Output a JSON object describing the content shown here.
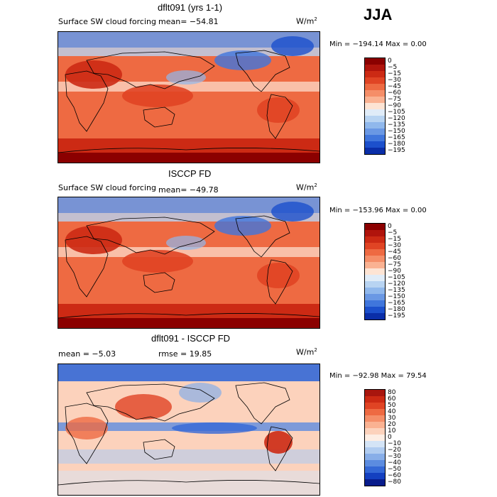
{
  "season": "JJA",
  "panels": [
    {
      "title": "dflt091 (yrs 1-1)",
      "subtitle": "Surface SW cloud forcing",
      "mean": "mean= −54.81",
      "units": "W/m",
      "units_sup": "2",
      "minmax": "Min = −194.14 Max =    0.00",
      "legend_levels": [
        "0",
        "−5",
        "−15",
        "−30",
        "−45",
        "−60",
        "−75",
        "−90",
        "−105",
        "−120",
        "−135",
        "−150",
        "−165",
        "−180",
        "−195"
      ],
      "legend_colors": [
        "#8b0000",
        "#b0140c",
        "#cc2a14",
        "#e04424",
        "#ee6a42",
        "#f58e68",
        "#fab292",
        "#fde4d4",
        "#e0ecf8",
        "#b8d4f2",
        "#90b8ec",
        "#6a98e4",
        "#4076dc",
        "#1c50cc",
        "#0a2ea8"
      ]
    },
    {
      "title": "ISCCP FD",
      "subtitle": "Surface SW cloud forcing",
      "mean": "mean= −49.78",
      "units": "W/m",
      "units_sup": "2",
      "minmax": "Min = −153.96 Max =    0.00",
      "legend_levels": [
        "0",
        "−5",
        "−15",
        "−30",
        "−45",
        "−60",
        "−75",
        "−90",
        "−105",
        "−120",
        "−135",
        "−150",
        "−165",
        "−180",
        "−195"
      ],
      "legend_colors": [
        "#8b0000",
        "#b0140c",
        "#cc2a14",
        "#e04424",
        "#ee6a42",
        "#f58e68",
        "#fab292",
        "#fde4d4",
        "#e0ecf8",
        "#b8d4f2",
        "#90b8ec",
        "#6a98e4",
        "#4076dc",
        "#1c50cc",
        "#0a2ea8"
      ]
    },
    {
      "title": "dflt091 - ISCCP FD",
      "mean": "mean =    −5.03",
      "rmse": "rmse =   19.85",
      "units": "W/m",
      "units_sup": "2",
      "minmax": "Min = −92.98 Max =   79.54",
      "legend_levels": [
        "80",
        "60",
        "50",
        "40",
        "30",
        "20",
        "10",
        "0",
        "−10",
        "−20",
        "−30",
        "−40",
        "−50",
        "−60",
        "−80"
      ],
      "legend_colors": [
        "#a8160e",
        "#cc2a14",
        "#e04424",
        "#ee6a42",
        "#f58e68",
        "#fab292",
        "#fcd2bc",
        "#fdeee4",
        "#d4e4f6",
        "#b0ccf0",
        "#88aee8",
        "#5c8ce0",
        "#3468d6",
        "#1440c0",
        "#081c8c"
      ]
    }
  ]
}
